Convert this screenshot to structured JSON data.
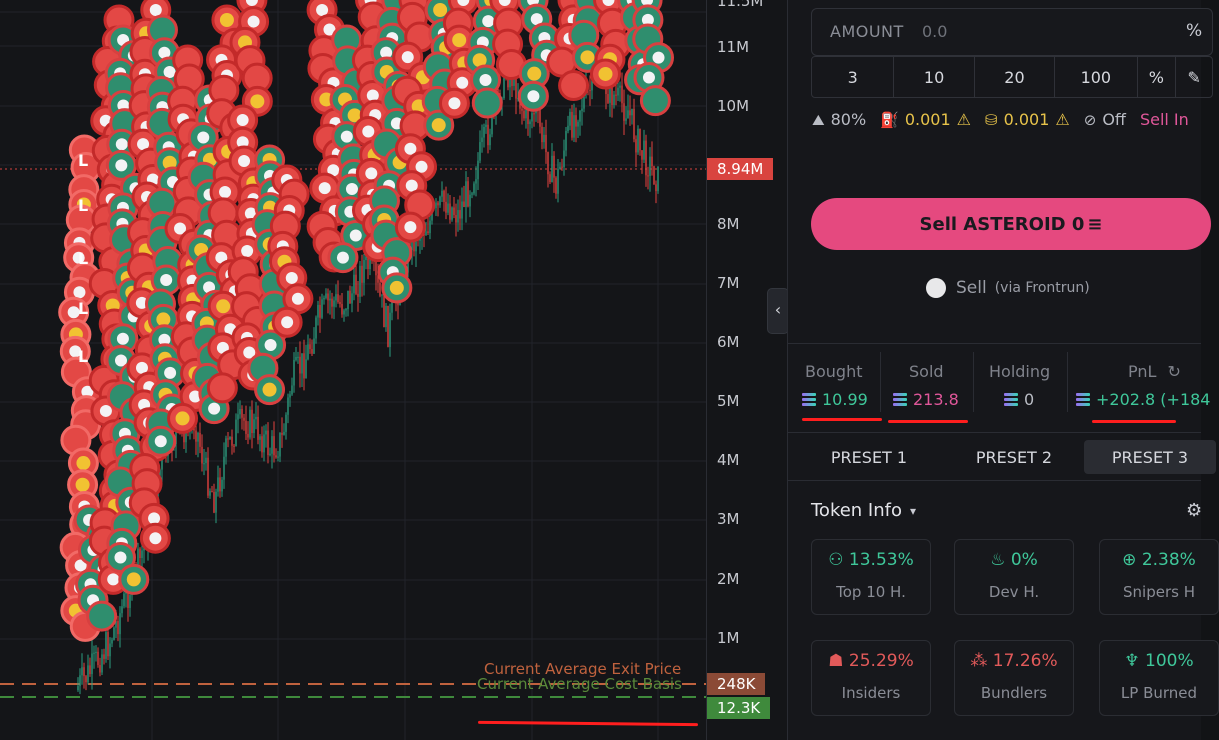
{
  "chart": {
    "current_price_label": "8.94M",
    "exit_price_tag": "248K",
    "cost_basis_tag": "12.3K",
    "exit_label": "Current Average Exit Price",
    "cost_label": "Current Average Cost Basis",
    "y_ticks": [
      "11.5M",
      "11M",
      "10M",
      "8M",
      "7M",
      "6M",
      "5M",
      "4M",
      "3M",
      "2M",
      "1M"
    ],
    "colors": {
      "up": "#2b9d80",
      "down": "#e2433f",
      "current": "#d9443f",
      "exit": "#c0623e",
      "cost": "#3f8a3c"
    }
  },
  "panel": {
    "amount": {
      "label": "AMOUNT",
      "placeholder": "0.0",
      "suffix": "%"
    },
    "quick_amounts": [
      "3",
      "10",
      "20",
      "100",
      "%",
      "✎"
    ],
    "settings": {
      "slippage": "80%",
      "priority": "0.001",
      "bribe": "0.001",
      "mev": "Off",
      "sell_init": "Sell In"
    },
    "sell_button": "Sell ASTEROID 0",
    "frontrun": {
      "label": "Sell",
      "sub": "(via Frontrun)"
    },
    "stats": {
      "bought": {
        "label": "Bought",
        "value": "10.99"
      },
      "sold": {
        "label": "Sold",
        "value": "213.8"
      },
      "holding": {
        "label": "Holding",
        "value": "0"
      },
      "pnl": {
        "label": "PnL",
        "value": "+202.8 (+184"
      }
    },
    "presets": [
      "PRESET 1",
      "PRESET 2",
      "PRESET 3"
    ],
    "token_info": {
      "title": "Token Info",
      "cards": [
        {
          "value": "13.53%",
          "label": "Top 10 H.",
          "color": "#3fc79a",
          "icon": "users-icon"
        },
        {
          "value": "0%",
          "label": "Dev H.",
          "color": "#3fc79a",
          "icon": "chef-hat-icon"
        },
        {
          "value": "2.38%",
          "label": "Snipers H",
          "color": "#3fc79a",
          "icon": "crosshair-icon"
        },
        {
          "value": "25.29%",
          "label": "Insiders",
          "color": "#e25a5a",
          "icon": "ghost-icon"
        },
        {
          "value": "17.26%",
          "label": "Bundlers",
          "color": "#e25a5a",
          "icon": "cubes-icon"
        },
        {
          "value": "100%",
          "label": "LP Burned",
          "color": "#3fc79a",
          "icon": "flame-icon"
        }
      ]
    }
  }
}
